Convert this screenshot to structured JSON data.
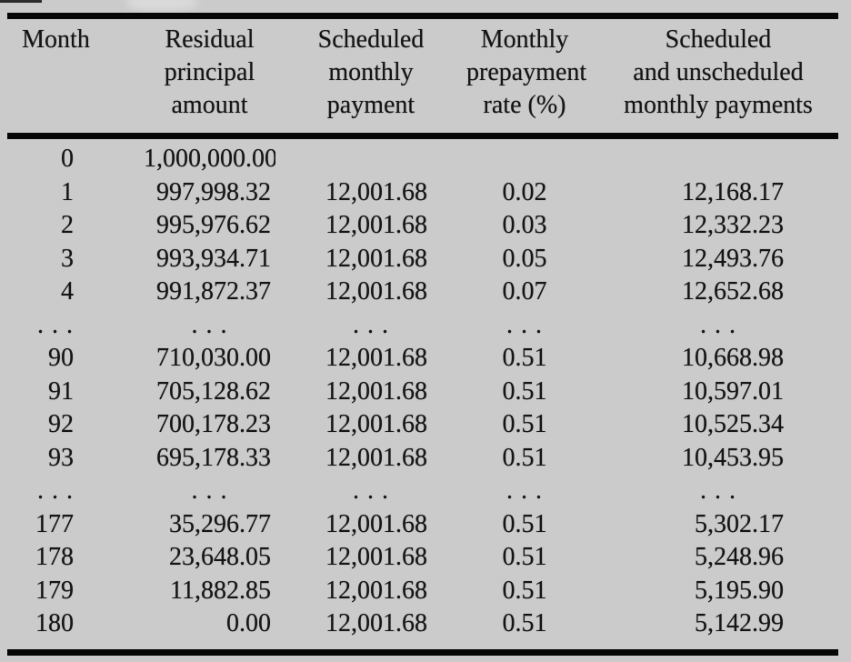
{
  "colors": {
    "page_background": "#cbcbcb",
    "text": "#151515",
    "rule": "#070707"
  },
  "table": {
    "columns": [
      {
        "label": "Month"
      },
      {
        "label": "Residual\nprincipal\namount"
      },
      {
        "label": "Scheduled\nmonthly\npayment"
      },
      {
        "label": "Monthly\nprepayment\nrate (%)"
      },
      {
        "label": "Scheduled\nand unscheduled\nmonthly payments"
      }
    ],
    "rows": [
      [
        "0",
        "1,000,000.00",
        "",
        "",
        ""
      ],
      [
        "1",
        "997,998.32",
        "12,001.68",
        "0.02",
        "12,168.17"
      ],
      [
        "2",
        "995,976.62",
        "12,001.68",
        "0.03",
        "12,332.23"
      ],
      [
        "3",
        "993,934.71",
        "12,001.68",
        "0.05",
        "12,493.76"
      ],
      [
        "4",
        "991,872.37",
        "12,001.68",
        "0.07",
        "12,652.68"
      ],
      [
        ". . .",
        ". . .",
        ". . .",
        ". . .",
        ". . ."
      ],
      [
        "90",
        "710,030.00",
        "12,001.68",
        "0.51",
        "10,668.98"
      ],
      [
        "91",
        "705,128.62",
        "12,001.68",
        "0.51",
        "10,597.01"
      ],
      [
        "92",
        "700,178.23",
        "12,001.68",
        "0.51",
        "10,525.34"
      ],
      [
        "93",
        "695,178.33",
        "12,001.68",
        "0.51",
        "10,453.95"
      ],
      [
        ". . .",
        ". . .",
        ". . .",
        ". . .",
        ". . ."
      ],
      [
        "177",
        "35,296.77",
        "12,001.68",
        "0.51",
        "5,302.17"
      ],
      [
        "178",
        "23,648.05",
        "12,001.68",
        "0.51",
        "5,248.96"
      ],
      [
        "179",
        "11,882.85",
        "12,001.68",
        "0.51",
        "5,195.90"
      ],
      [
        "180",
        "0.00",
        "12,001.68",
        "0.51",
        "5,142.99"
      ]
    ]
  }
}
